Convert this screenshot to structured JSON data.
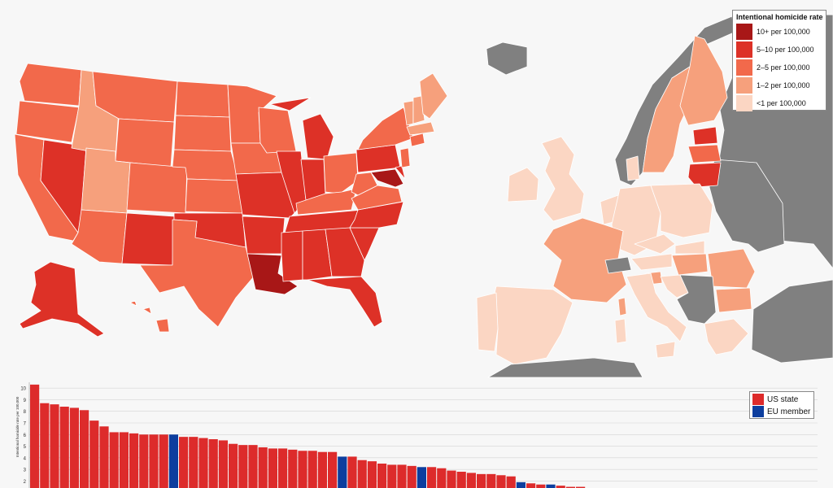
{
  "title": "",
  "map_legend": {
    "title": "Intentional homicide rate",
    "items": [
      {
        "label": "10+ per 100,000",
        "color": "#a81717"
      },
      {
        "label": "5–10 per 100,000",
        "color": "#dd3127"
      },
      {
        "label": "2–5 per 100,000",
        "color": "#f2694b"
      },
      {
        "label": "1–2 per 100,000",
        "color": "#f6a07c"
      },
      {
        "label": "<1 per 100,000",
        "color": "#fbd6c3"
      }
    ]
  },
  "non_eu_color": "#808080",
  "chart_data": {
    "type": "bar",
    "ylabel": "Intentional homicide rate per 100,000",
    "ylim": [
      0,
      10.5
    ],
    "yticks": [
      2,
      3,
      4,
      5,
      6,
      7,
      8,
      9,
      10
    ],
    "legend": [
      {
        "label": "US state",
        "color": "#dd2b2b"
      },
      {
        "label": "EU member",
        "color": "#0d3e9e"
      }
    ],
    "groups": [
      "US",
      "US",
      "US",
      "US",
      "US",
      "US",
      "US",
      "US",
      "US",
      "US",
      "US",
      "US",
      "US",
      "US",
      "EU",
      "US",
      "US",
      "US",
      "US",
      "US",
      "US",
      "US",
      "US",
      "US",
      "US",
      "US",
      "US",
      "US",
      "US",
      "US",
      "US",
      "EU",
      "US",
      "US",
      "US",
      "US",
      "US",
      "US",
      "US",
      "EU",
      "US",
      "US",
      "US",
      "US",
      "US",
      "US",
      "US",
      "US",
      "US",
      "EU",
      "US",
      "US",
      "EU",
      "US",
      "US",
      "US",
      "US",
      "EU",
      "EU",
      "EU"
    ],
    "values": [
      10.3,
      8.7,
      8.6,
      8.4,
      8.3,
      8.1,
      7.2,
      6.7,
      6.2,
      6.2,
      6.1,
      6.0,
      6.0,
      6.0,
      6.0,
      5.8,
      5.8,
      5.7,
      5.6,
      5.5,
      5.2,
      5.1,
      5.1,
      4.9,
      4.8,
      4.8,
      4.7,
      4.6,
      4.6,
      4.5,
      4.5,
      4.1,
      4.1,
      3.8,
      3.7,
      3.5,
      3.4,
      3.4,
      3.3,
      3.2,
      3.2,
      3.1,
      2.9,
      2.8,
      2.7,
      2.6,
      2.6,
      2.5,
      2.4,
      1.9,
      1.8,
      1.7,
      1.7,
      1.6,
      1.5,
      1.5,
      1.4,
      1.4,
      1.3,
      1.2
    ]
  }
}
